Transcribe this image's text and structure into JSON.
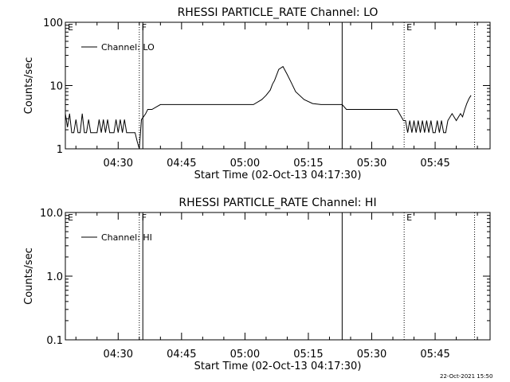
{
  "footer_date": "22-Oct-2021 15:50",
  "chart_data": [
    {
      "type": "line",
      "title": "RHESSI PARTICLE_RATE Channel: LO",
      "xlabel": "Start Time (02-Oct-13 04:17:30)",
      "ylabel": "Counts/sec",
      "yscale": "log",
      "ylim": [
        1,
        100
      ],
      "xlim": [
        "04:17:30",
        "05:58:00"
      ],
      "ytick_labels": [
        "1",
        "10",
        "100"
      ],
      "xtick_labels": [
        "04:30",
        "04:45",
        "05:00",
        "05:15",
        "05:30",
        "05:45"
      ],
      "legend": "top-left",
      "series": [
        {
          "name": "Channel: LO",
          "color": "#000000",
          "x": [
            "04:17:30",
            "04:18:00",
            "04:18:30",
            "04:19:00",
            "04:19:30",
            "04:20:00",
            "04:20:30",
            "04:21:00",
            "04:21:30",
            "04:22:00",
            "04:22:30",
            "04:23:00",
            "04:23:30",
            "04:24:00",
            "04:24:30",
            "04:25:00",
            "04:25:30",
            "04:26:00",
            "04:26:30",
            "04:27:00",
            "04:27:30",
            "04:28:00",
            "04:28:30",
            "04:29:00",
            "04:29:30",
            "04:30:00",
            "04:30:30",
            "04:31:00",
            "04:31:30",
            "04:32:00",
            "04:32:30",
            "04:33:00",
            "04:33:30",
            "04:34:00",
            "04:34:30",
            "04:35:00",
            "04:35:30",
            "04:36:00",
            "04:36:30",
            "04:37:00",
            "04:38:00",
            "04:40:00",
            "04:42:00",
            "04:44:00",
            "04:46:00",
            "04:48:00",
            "04:50:00",
            "04:52:00",
            "04:54:00",
            "04:56:00",
            "04:58:00",
            "05:00:00",
            "05:02:00",
            "05:04:00",
            "05:05:00",
            "05:06:00",
            "05:06:30",
            "05:07:00",
            "05:08:00",
            "05:09:00",
            "05:10:00",
            "05:11:00",
            "05:12:00",
            "05:14:00",
            "05:16:00",
            "05:18:00",
            "05:20:00",
            "05:22:00",
            "05:23:00",
            "05:24:00",
            "05:26:00",
            "05:28:00",
            "05:30:00",
            "05:32:00",
            "05:34:00",
            "05:36:00",
            "05:37:30",
            "05:38:00",
            "05:38:30",
            "05:39:00",
            "05:39:30",
            "05:40:00",
            "05:40:30",
            "05:41:00",
            "05:41:30",
            "05:42:00",
            "05:42:30",
            "05:43:00",
            "05:43:30",
            "05:44:00",
            "05:44:30",
            "05:45:00",
            "05:45:30",
            "05:46:00",
            "05:46:30",
            "05:47:00",
            "05:47:30",
            "05:48:00",
            "05:49:00",
            "05:50:00",
            "05:51:00",
            "05:51:30",
            "05:52:00",
            "05:52:30",
            "05:53:00",
            "05:53:30"
          ],
          "y": [
            3.6,
            2.2,
            3.6,
            1.8,
            1.8,
            2.9,
            1.8,
            1.8,
            3.6,
            1.8,
            1.8,
            2.9,
            1.8,
            1.8,
            1.8,
            1.8,
            2.9,
            1.8,
            2.9,
            1.8,
            2.9,
            1.8,
            1.8,
            1.8,
            2.9,
            1.8,
            2.9,
            1.8,
            2.9,
            1.8,
            1.8,
            1.8,
            1.8,
            1.8,
            1.3,
            1.0,
            2.9,
            3.2,
            3.6,
            4.2,
            4.2,
            5.0,
            5.0,
            5.0,
            5.0,
            5.0,
            5.0,
            5.0,
            5.0,
            5.0,
            5.0,
            5.0,
            5.0,
            6.0,
            7.0,
            8.5,
            10.5,
            12.0,
            18.0,
            20.0,
            15.0,
            11.0,
            8.0,
            6.0,
            5.2,
            5.0,
            5.0,
            5.0,
            5.0,
            4.2,
            4.2,
            4.2,
            4.2,
            4.2,
            4.2,
            4.2,
            2.8,
            2.8,
            1.8,
            2.8,
            1.8,
            2.8,
            1.8,
            2.8,
            1.8,
            2.8,
            1.8,
            2.8,
            1.8,
            2.8,
            1.8,
            1.8,
            2.8,
            1.8,
            2.8,
            1.8,
            1.8,
            2.8,
            3.6,
            2.8,
            3.6,
            3.2,
            4.2,
            5.2,
            6.2,
            7.0
          ]
        }
      ],
      "vertical_markers": [
        {
          "label": "E",
          "time": "04:17:30",
          "style": "dotted"
        },
        {
          "label": "F",
          "time": "04:35:00",
          "style": "dotted"
        },
        {
          "label": "",
          "time": "04:35:50",
          "style": "solid"
        },
        {
          "label": "",
          "time": "05:23:00",
          "style": "solid"
        },
        {
          "label": "E",
          "time": "05:37:40",
          "style": "dotted"
        },
        {
          "label": "",
          "time": "05:54:20",
          "style": "dotted"
        }
      ]
    },
    {
      "type": "line",
      "title": "RHESSI PARTICLE_RATE Channel: HI",
      "xlabel": "Start Time (02-Oct-13 04:17:30)",
      "ylabel": "Counts/sec",
      "yscale": "log",
      "ylim": [
        0.1,
        10.0
      ],
      "xlim": [
        "04:17:30",
        "05:58:00"
      ],
      "ytick_labels": [
        "0.1",
        "1.0",
        "10.0"
      ],
      "xtick_labels": [
        "04:30",
        "04:45",
        "05:00",
        "05:15",
        "05:30",
        "05:45"
      ],
      "legend": "top-left",
      "series": [
        {
          "name": "Channel: HI",
          "color": "#000000",
          "x": [],
          "y": []
        }
      ],
      "vertical_markers": [
        {
          "label": "E",
          "time": "04:17:30",
          "style": "dotted"
        },
        {
          "label": "F",
          "time": "04:35:00",
          "style": "dotted"
        },
        {
          "label": "",
          "time": "04:35:50",
          "style": "solid"
        },
        {
          "label": "",
          "time": "05:23:00",
          "style": "solid"
        },
        {
          "label": "E",
          "time": "05:37:40",
          "style": "dotted"
        },
        {
          "label": "",
          "time": "05:54:20",
          "style": "dotted"
        }
      ]
    }
  ]
}
